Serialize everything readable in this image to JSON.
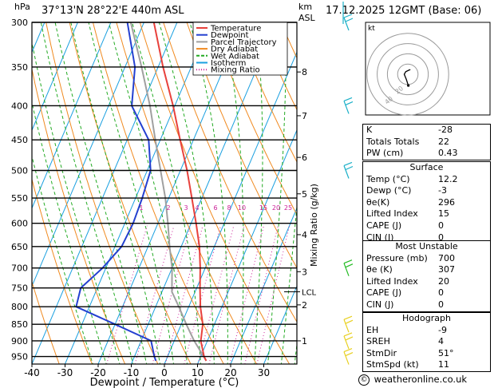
{
  "header": {
    "location": "37°13'N  28°22'E  440m  ASL",
    "datetime": "17.12.2025  12GMT  (Base: 06)",
    "hpa_label": "hPa",
    "km_label": "km",
    "asl_label": "ASL"
  },
  "legend": {
    "items": [
      {
        "label": "Temperature",
        "color": "#e8413c",
        "style": "solid"
      },
      {
        "label": "Dewpoint",
        "color": "#2440d0",
        "style": "solid"
      },
      {
        "label": "Parcel Trajectory",
        "color": "#a0a0a0",
        "style": "solid"
      },
      {
        "label": "Dry Adiabat",
        "color": "#f08a20",
        "style": "solid"
      },
      {
        "label": "Wet Adiabat",
        "color": "#22aa22",
        "style": "dashed"
      },
      {
        "label": "Isotherm",
        "color": "#1aa0e0",
        "style": "solid"
      },
      {
        "label": "Mixing Ratio",
        "color": "#cc2299",
        "style": "dotted"
      }
    ]
  },
  "chart_data": {
    "type": "skew-t",
    "xlabel": "Dewpoint / Temperature (°C)",
    "ylabel_right": "Mixing Ratio (g/kg)",
    "x_ticks": [
      -40,
      -30,
      -20,
      -10,
      0,
      10,
      20,
      30
    ],
    "pressure_ticks": [
      300,
      350,
      400,
      450,
      500,
      550,
      600,
      650,
      700,
      750,
      800,
      850,
      900,
      950
    ],
    "km_ticks": [
      {
        "label": "8",
        "p": 356
      },
      {
        "label": "7",
        "p": 414
      },
      {
        "label": "6",
        "p": 478
      },
      {
        "label": "5",
        "p": 542
      },
      {
        "label": "4",
        "p": 624
      },
      {
        "label": "3",
        "p": 709
      },
      {
        "label": "2",
        "p": 795
      },
      {
        "label": "1",
        "p": 900
      }
    ],
    "lcl": {
      "label": "LCL",
      "p": 760
    },
    "mixing_ratio_labels": [
      "1",
      "2",
      "3",
      "4",
      "6",
      "8",
      "10",
      "15",
      "20",
      "25"
    ],
    "mixing_ratio_label_p": 589,
    "temperature": [
      [
        964,
        12.2
      ],
      [
        950,
        11
      ],
      [
        900,
        8
      ],
      [
        850,
        6.5
      ],
      [
        800,
        3.5
      ],
      [
        750,
        1
      ],
      [
        700,
        -1.5
      ],
      [
        650,
        -4.5
      ],
      [
        600,
        -8.5
      ],
      [
        550,
        -13
      ],
      [
        500,
        -18
      ],
      [
        450,
        -24
      ],
      [
        400,
        -30.5
      ],
      [
        350,
        -38.5
      ],
      [
        300,
        -47
      ]
    ],
    "dewpoint": [
      [
        964,
        -3
      ],
      [
        950,
        -4
      ],
      [
        900,
        -7
      ],
      [
        850,
        -20
      ],
      [
        800,
        -34
      ],
      [
        750,
        -35
      ],
      [
        700,
        -31
      ],
      [
        650,
        -28
      ],
      [
        600,
        -27.5
      ],
      [
        550,
        -28
      ],
      [
        500,
        -29
      ],
      [
        450,
        -33.5
      ],
      [
        400,
        -43
      ],
      [
        350,
        -47
      ],
      [
        300,
        -55
      ]
    ],
    "parcel": [
      [
        964,
        12.2
      ],
      [
        900,
        6
      ],
      [
        850,
        1.5
      ],
      [
        800,
        -3
      ],
      [
        760,
        -7
      ],
      [
        700,
        -10
      ],
      [
        650,
        -13.5
      ],
      [
        600,
        -17
      ],
      [
        550,
        -21
      ],
      [
        500,
        -26
      ],
      [
        450,
        -31.5
      ],
      [
        400,
        -37.5
      ],
      [
        350,
        -45
      ],
      [
        300,
        -54
      ]
    ],
    "hodograph": {
      "kt_label": "kt",
      "ring_labels": [
        "40",
        "20"
      ],
      "trace_kt": [
        [
          0.5,
          -11
        ],
        [
          -1.5,
          -5
        ],
        [
          -3.5,
          0
        ],
        [
          -2,
          2.5
        ],
        [
          1,
          4
        ],
        [
          2.5,
          4.5
        ]
      ]
    },
    "wind_barbs_p": [
      300,
      400,
      500,
      700,
      850,
      900,
      950
    ]
  },
  "stats": {
    "rows1": [
      {
        "label": "K",
        "value": "-28"
      },
      {
        "label": "Totals Totals",
        "value": "22"
      },
      {
        "label": "PW (cm)",
        "value": "0.43"
      }
    ],
    "surface": {
      "title": "Surface",
      "rows": [
        {
          "label": "Temp (°C)",
          "value": "12.2"
        },
        {
          "label": "Dewp (°C)",
          "value": "-3"
        },
        {
          "label": "θe(K)",
          "value": "296"
        },
        {
          "label": "Lifted Index",
          "value": "15"
        },
        {
          "label": "CAPE (J)",
          "value": "0"
        },
        {
          "label": "CIN (J)",
          "value": "0"
        }
      ]
    },
    "most_unstable": {
      "title": "Most Unstable",
      "rows": [
        {
          "label": "Pressure (mb)",
          "value": "700"
        },
        {
          "label": "θe (K)",
          "value": "307"
        },
        {
          "label": "Lifted Index",
          "value": "20"
        },
        {
          "label": "CAPE (J)",
          "value": "0"
        },
        {
          "label": "CIN (J)",
          "value": "0"
        }
      ]
    },
    "hodograph_table": {
      "title": "Hodograph",
      "rows": [
        {
          "label": "EH",
          "value": "-9"
        },
        {
          "label": "SREH",
          "value": "4"
        },
        {
          "label": "StmDir",
          "value": "51°"
        },
        {
          "label": "StmSpd (kt)",
          "value": "11"
        }
      ]
    }
  },
  "copyright": {
    "symbol": "©",
    "text": "weatheronline.co.uk"
  }
}
